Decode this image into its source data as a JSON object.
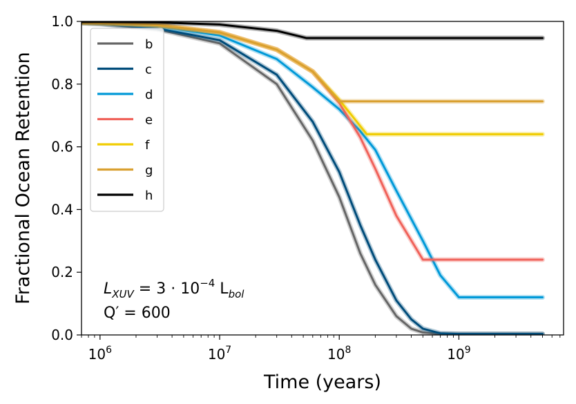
{
  "chart_data": {
    "type": "line",
    "xlabel": "Time (years)",
    "ylabel": "Fractional Ocean Retention",
    "xscale": "log",
    "xlim": [
      700000,
      7500000000
    ],
    "ylim": [
      0.0,
      1.0
    ],
    "x_ticks": [
      {
        "value": 1000000,
        "base": "10",
        "exp": "6"
      },
      {
        "value": 10000000,
        "base": "10",
        "exp": "7"
      },
      {
        "value": 100000000,
        "base": "10",
        "exp": "8"
      },
      {
        "value": 1000000000,
        "base": "10",
        "exp": "9"
      }
    ],
    "y_ticks": [
      {
        "value": 0.0,
        "label": "0.0"
      },
      {
        "value": 0.2,
        "label": "0.2"
      },
      {
        "value": 0.4,
        "label": "0.4"
      },
      {
        "value": 0.6,
        "label": "0.6"
      },
      {
        "value": 0.8,
        "label": "0.8"
      },
      {
        "value": 1.0,
        "label": "1.0"
      }
    ],
    "legend": "top-left",
    "grid": false,
    "annotations": [
      {
        "line1": "L_XUV = 3·10^-4 L_bol",
        "text_main": "L",
        "sub1": "XUV",
        "eq": " = 3 · 10",
        "sup": "−4",
        "unit": " L",
        "sub2": "bol"
      },
      {
        "line2": "Q′ = 600"
      }
    ],
    "series": [
      {
        "name": "b",
        "color": "#666666",
        "x": [
          700000,
          1000000,
          3000000,
          10000000,
          30000000,
          60000000,
          100000000,
          150000000,
          200000000,
          300000000,
          400000000,
          500000000,
          700000000,
          1000000000,
          5000000000
        ],
        "y": [
          0.995,
          0.992,
          0.975,
          0.93,
          0.8,
          0.62,
          0.44,
          0.26,
          0.16,
          0.06,
          0.02,
          0.008,
          0.003,
          0.003,
          0.003
        ]
      },
      {
        "name": "c",
        "color": "#004c7a",
        "x": [
          700000,
          1000000,
          3000000,
          10000000,
          30000000,
          60000000,
          100000000,
          150000000,
          200000000,
          300000000,
          400000000,
          500000000,
          700000000,
          1000000000,
          5000000000
        ],
        "y": [
          0.995,
          0.993,
          0.978,
          0.94,
          0.83,
          0.68,
          0.52,
          0.35,
          0.24,
          0.11,
          0.05,
          0.02,
          0.005,
          0.003,
          0.003
        ]
      },
      {
        "name": "d",
        "color": "#0099d8",
        "x": [
          700000,
          1000000,
          3000000,
          10000000,
          30000000,
          60000000,
          100000000,
          150000000,
          200000000,
          300000000,
          500000000,
          700000000,
          1000000000,
          5000000000
        ],
        "y": [
          0.996,
          0.995,
          0.985,
          0.955,
          0.88,
          0.79,
          0.72,
          0.65,
          0.59,
          0.46,
          0.3,
          0.19,
          0.12,
          0.12
        ]
      },
      {
        "name": "e",
        "color": "#f0625a",
        "x": [
          700000,
          1000000,
          3000000,
          10000000,
          30000000,
          60000000,
          100000000,
          150000000,
          200000000,
          300000000,
          500000000,
          5000000000
        ],
        "y": [
          0.996,
          0.995,
          0.988,
          0.965,
          0.91,
          0.84,
          0.74,
          0.63,
          0.53,
          0.38,
          0.24,
          0.24
        ]
      },
      {
        "name": "f",
        "color": "#f0cc00",
        "x": [
          700000,
          1000000,
          3000000,
          10000000,
          30000000,
          60000000,
          100000000,
          170000000,
          5000000000
        ],
        "y": [
          0.996,
          0.995,
          0.988,
          0.965,
          0.91,
          0.84,
          0.75,
          0.64,
          0.64
        ]
      },
      {
        "name": "g",
        "color": "#d9a030",
        "x": [
          700000,
          1000000,
          3000000,
          10000000,
          30000000,
          60000000,
          100000000,
          5000000000
        ],
        "y": [
          0.996,
          0.995,
          0.988,
          0.965,
          0.91,
          0.84,
          0.745,
          0.745
        ]
      },
      {
        "name": "h",
        "color": "#000000",
        "x": [
          700000,
          1000000,
          3000000,
          10000000,
          30000000,
          53000000,
          5000000000
        ],
        "y": [
          0.999,
          0.999,
          0.997,
          0.99,
          0.97,
          0.947,
          0.947
        ]
      }
    ]
  }
}
